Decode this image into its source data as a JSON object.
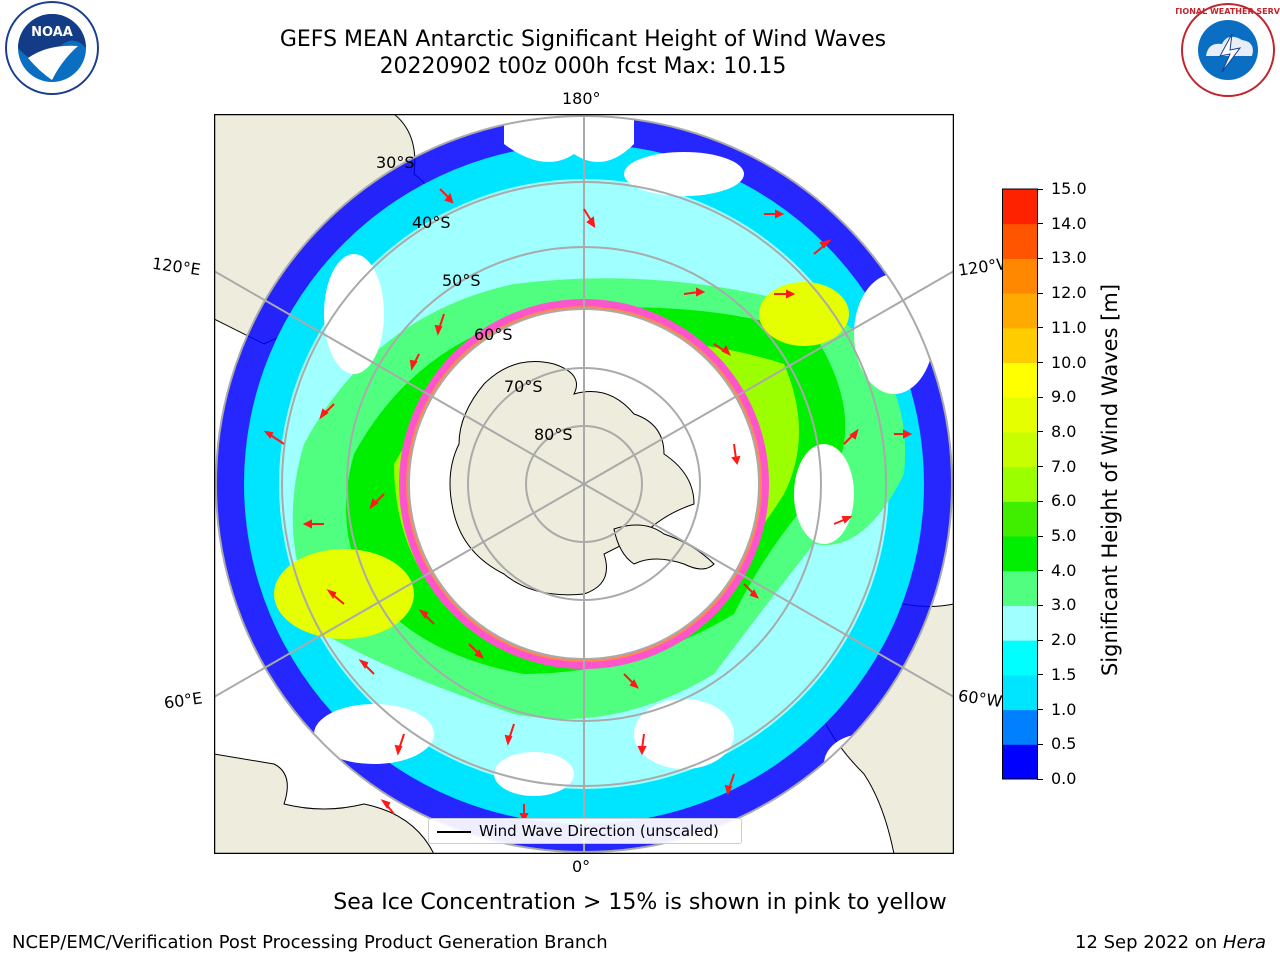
{
  "header": {
    "title_line1": "GEFS MEAN Antarctic Significant Height of Wind Waves",
    "title_line2": "20220902 t00z 000h fcst   Max: 10.15"
  },
  "logos": {
    "left": "NOAA",
    "right": "NATIONAL WEATHER SERVICE"
  },
  "map": {
    "projection": "south polar stereographic",
    "lon_labels": {
      "top": "180°",
      "bottom": "0°",
      "upper_left": "120°E",
      "upper_right": "120°W",
      "lower_left": "60°E",
      "lower_right": "60°W"
    },
    "lat_labels": [
      "30°S",
      "40°S",
      "50°S",
      "60°S",
      "70°S",
      "80°S"
    ],
    "legend_label": "Wind Wave Direction (unscaled)",
    "land_color": "#eeecdc",
    "arrow_color": "#ff1a1a",
    "sea_ice_color": "#ff55cc"
  },
  "colorbar": {
    "label": "Significant Height of Wind Waves [m]",
    "ticks": [
      "15.0",
      "14.0",
      "13.0",
      "12.0",
      "11.0",
      "10.0",
      "9.0",
      "8.0",
      "7.0",
      "6.0",
      "5.0",
      "4.0",
      "3.0",
      "2.0",
      "1.5",
      "1.0",
      "0.5",
      "0.0"
    ],
    "colors": [
      "#0000ff",
      "#0080ff",
      "#00e5ff",
      "#00ffff",
      "#a0ffff",
      "#50ff80",
      "#00ee00",
      "#40ee00",
      "#9cff00",
      "#c8ff00",
      "#e5ff00",
      "#ffff00",
      "#ffcc00",
      "#ffaa00",
      "#ff8800",
      "#ff5500",
      "#ff2200"
    ]
  },
  "footer": {
    "caption": "Sea Ice Concentration > 15% is shown in pink to yellow",
    "left": "NCEP/EMC/Verification Post Processing Product Generation Branch",
    "right_prefix": "12 Sep 2022 on ",
    "right_host": "Hera"
  }
}
